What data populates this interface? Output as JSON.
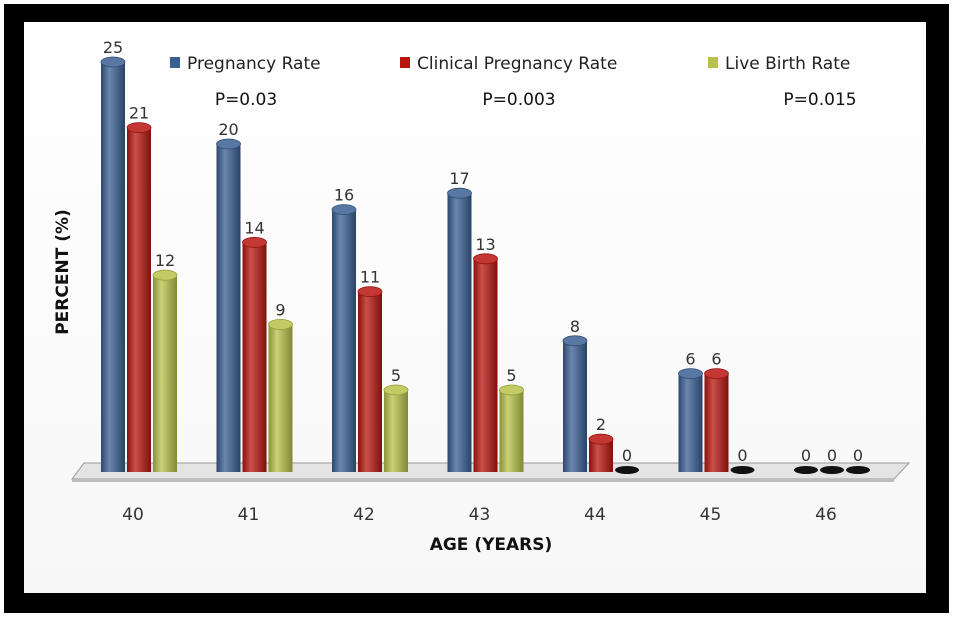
{
  "chart_data": {
    "type": "bar",
    "title": "",
    "xlabel": "AGE (YEARS)",
    "ylabel": "PERCENT (%)",
    "categories": [
      "40",
      "41",
      "42",
      "43",
      "44",
      "45",
      "46"
    ],
    "ylim": [
      0,
      25
    ],
    "grid": false,
    "legend_position": "top",
    "series": [
      {
        "name": "Pregnancy Rate",
        "color": "#3a5f93",
        "values": [
          25,
          20,
          16,
          17,
          8,
          6,
          0
        ]
      },
      {
        "name": "Clinical Pregnancy Rate",
        "color": "#b8150f",
        "values": [
          21,
          14,
          11,
          13,
          2,
          6,
          0
        ]
      },
      {
        "name": "Live Birth Rate",
        "color": "#b8c24a",
        "values": [
          12,
          9,
          5,
          5,
          0,
          0,
          0
        ]
      }
    ],
    "annotations": [
      "P=0.03",
      "P=0.003",
      "P=0.015"
    ]
  }
}
